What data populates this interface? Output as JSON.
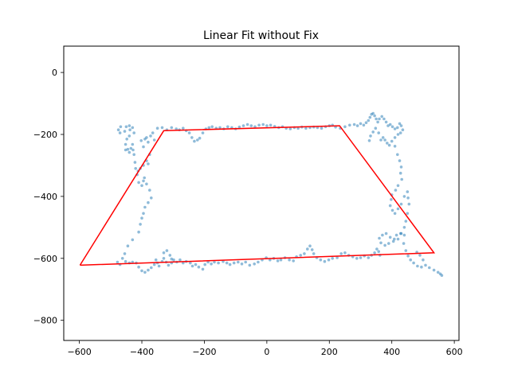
{
  "chart_data": {
    "type": "scatter",
    "title": "Linear Fit without Fix",
    "xlabel": "",
    "ylabel": "",
    "xlim": [
      -650,
      615
    ],
    "ylim": [
      -865,
      85
    ],
    "xticks": [
      -600,
      -400,
      -200,
      0,
      200,
      400,
      600
    ],
    "yticks": [
      0,
      -200,
      -400,
      -600,
      -800
    ],
    "grid": false,
    "colors": {
      "points": "#1f77b4",
      "fit_line": "#ff0000",
      "axes": "#000000"
    },
    "series": [
      {
        "kind": "points",
        "values": [
          [
            -475,
            -185
          ],
          [
            -468,
            -175
          ],
          [
            -470,
            -195
          ],
          [
            -455,
            -190
          ],
          [
            -450,
            -175
          ],
          [
            -440,
            -172
          ],
          [
            -438,
            -185
          ],
          [
            -430,
            -178
          ],
          [
            -425,
            -195
          ],
          [
            -448,
            -215
          ],
          [
            -452,
            -232
          ],
          [
            -445,
            -248
          ],
          [
            -440,
            -258
          ],
          [
            -452,
            -250
          ],
          [
            -435,
            -245
          ],
          [
            -430,
            -232
          ],
          [
            -428,
            -250
          ],
          [
            -440,
            -205
          ],
          [
            -425,
            -265
          ],
          [
            -422,
            -290
          ],
          [
            -420,
            -310
          ],
          [
            -412,
            -318
          ],
          [
            -405,
            -310
          ],
          [
            -415,
            -330
          ],
          [
            -410,
            -355
          ],
          [
            -400,
            -365
          ],
          [
            -395,
            -350
          ],
          [
            -392,
            -340
          ],
          [
            -385,
            -360
          ],
          [
            -375,
            -380
          ],
          [
            -370,
            -405
          ],
          [
            -380,
            -420
          ],
          [
            -390,
            -435
          ],
          [
            -395,
            -455
          ],
          [
            -400,
            -470
          ],
          [
            -405,
            -490
          ],
          [
            -410,
            -515
          ],
          [
            -430,
            -540
          ],
          [
            -445,
            -560
          ],
          [
            -455,
            -585
          ],
          [
            -462,
            -600
          ],
          [
            -470,
            -620
          ],
          [
            -478,
            -612
          ],
          [
            -402,
            -220
          ],
          [
            -395,
            -240
          ],
          [
            -390,
            -215
          ],
          [
            -385,
            -210
          ],
          [
            -380,
            -225
          ],
          [
            -372,
            -205
          ],
          [
            -365,
            -195
          ],
          [
            -360,
            -218
          ],
          [
            -375,
            -265
          ],
          [
            -395,
            -300
          ],
          [
            -385,
            -285
          ],
          [
            -380,
            -295
          ],
          [
            -452,
            -610
          ],
          [
            -440,
            -615
          ],
          [
            -430,
            -612
          ],
          [
            -418,
            -615
          ],
          [
            -410,
            -628
          ],
          [
            -400,
            -640
          ],
          [
            -390,
            -645
          ],
          [
            -380,
            -638
          ],
          [
            -370,
            -630
          ],
          [
            -360,
            -620
          ],
          [
            -355,
            -605
          ],
          [
            -350,
            -615
          ],
          [
            -345,
            -625
          ],
          [
            -335,
            -610
          ],
          [
            -330,
            -600
          ],
          [
            -322,
            -612
          ],
          [
            -315,
            -622
          ],
          [
            -305,
            -615
          ],
          [
            -298,
            -605
          ],
          [
            -288,
            -612
          ],
          [
            -278,
            -605
          ],
          [
            -268,
            -615
          ],
          [
            -258,
            -610
          ],
          [
            -245,
            -615
          ],
          [
            -238,
            -625
          ],
          [
            -228,
            -620
          ],
          [
            -218,
            -628
          ],
          [
            -205,
            -635
          ],
          [
            -198,
            -620
          ],
          [
            -188,
            -612
          ],
          [
            -178,
            -618
          ],
          [
            -168,
            -612
          ],
          [
            -155,
            -615
          ],
          [
            -140,
            -610
          ],
          [
            -128,
            -615
          ],
          [
            -118,
            -620
          ],
          [
            -105,
            -615
          ],
          [
            -92,
            -612
          ],
          [
            -80,
            -618
          ],
          [
            -68,
            -612
          ],
          [
            -55,
            -622
          ],
          [
            -40,
            -618
          ],
          [
            -28,
            -612
          ],
          [
            -15,
            -605
          ],
          [
            -2,
            -598
          ],
          [
            10,
            -605
          ],
          [
            22,
            -600
          ],
          [
            35,
            -608
          ],
          [
            45,
            -605
          ],
          [
            58,
            -598
          ],
          [
            72,
            -605
          ],
          [
            85,
            -608
          ],
          [
            95,
            -595
          ],
          [
            108,
            -590
          ],
          [
            120,
            -585
          ],
          [
            130,
            -570
          ],
          [
            138,
            -560
          ],
          [
            145,
            -572
          ],
          [
            150,
            -585
          ],
          [
            160,
            -598
          ],
          [
            172,
            -605
          ],
          [
            185,
            -610
          ],
          [
            198,
            -605
          ],
          [
            210,
            -600
          ],
          [
            225,
            -598
          ],
          [
            238,
            -585
          ],
          [
            250,
            -582
          ],
          [
            262,
            -590
          ],
          [
            275,
            -595
          ],
          [
            288,
            -600
          ],
          [
            300,
            -598
          ],
          [
            312,
            -592
          ],
          [
            325,
            -598
          ],
          [
            335,
            -590
          ],
          [
            345,
            -582
          ],
          [
            352,
            -570
          ],
          [
            358,
            -578
          ],
          [
            362,
            -590
          ],
          [
            -320,
            -575
          ],
          [
            -330,
            -582
          ],
          [
            -310,
            -590
          ],
          [
            -305,
            -602
          ],
          [
            -350,
            -180
          ],
          [
            -335,
            -178
          ],
          [
            -320,
            -185
          ],
          [
            -305,
            -178
          ],
          [
            -290,
            -182
          ],
          [
            -280,
            -185
          ],
          [
            -268,
            -180
          ],
          [
            -258,
            -188
          ],
          [
            -248,
            -195
          ],
          [
            -240,
            -210
          ],
          [
            -232,
            -222
          ],
          [
            -222,
            -218
          ],
          [
            -215,
            -212
          ],
          [
            -205,
            -195
          ],
          [
            -195,
            -182
          ],
          [
            -185,
            -178
          ],
          [
            -175,
            -175
          ],
          [
            -162,
            -180
          ],
          [
            -150,
            -178
          ],
          [
            -138,
            -182
          ],
          [
            -125,
            -175
          ],
          [
            -112,
            -178
          ],
          [
            -100,
            -182
          ],
          [
            -88,
            -176
          ],
          [
            -75,
            -172
          ],
          [
            -62,
            -168
          ],
          [
            -50,
            -172
          ],
          [
            -38,
            -175
          ],
          [
            -25,
            -170
          ],
          [
            -12,
            -168
          ],
          [
            0,
            -172
          ],
          [
            12,
            -170
          ],
          [
            25,
            -174
          ],
          [
            38,
            -178
          ],
          [
            50,
            -175
          ],
          [
            62,
            -180
          ],
          [
            75,
            -182
          ],
          [
            88,
            -178
          ],
          [
            100,
            -180
          ],
          [
            112,
            -176
          ],
          [
            125,
            -180
          ],
          [
            138,
            -178
          ],
          [
            150,
            -176
          ],
          [
            162,
            -178
          ],
          [
            175,
            -180
          ],
          [
            188,
            -175
          ],
          [
            200,
            -172
          ],
          [
            210,
            -170
          ],
          [
            220,
            -176
          ],
          [
            235,
            -180
          ],
          [
            250,
            -175
          ],
          [
            265,
            -170
          ],
          [
            280,
            -168
          ],
          [
            290,
            -172
          ],
          [
            300,
            -165
          ],
          [
            310,
            -170
          ],
          [
            318,
            -162
          ],
          [
            325,
            -155
          ],
          [
            330,
            -145
          ],
          [
            335,
            -135
          ],
          [
            340,
            -132
          ],
          [
            345,
            -140
          ],
          [
            350,
            -150
          ],
          [
            355,
            -160
          ],
          [
            360,
            -150
          ],
          [
            368,
            -142
          ],
          [
            375,
            -150
          ],
          [
            382,
            -160
          ],
          [
            388,
            -172
          ],
          [
            395,
            -168
          ],
          [
            402,
            -175
          ],
          [
            410,
            -182
          ],
          [
            418,
            -178
          ],
          [
            425,
            -165
          ],
          [
            430,
            -172
          ],
          [
            435,
            -185
          ],
          [
            428,
            -195
          ],
          [
            420,
            -200
          ],
          [
            410,
            -210
          ],
          [
            400,
            -222
          ],
          [
            392,
            -235
          ],
          [
            385,
            -228
          ],
          [
            378,
            -218
          ],
          [
            372,
            -210
          ],
          [
            365,
            -218
          ],
          [
            358,
            -195
          ],
          [
            348,
            -180
          ],
          [
            340,
            -192
          ],
          [
            332,
            -205
          ],
          [
            328,
            -220
          ],
          [
            410,
            -238
          ],
          [
            418,
            -265
          ],
          [
            425,
            -285
          ],
          [
            430,
            -305
          ],
          [
            428,
            -325
          ],
          [
            432,
            -345
          ],
          [
            420,
            -365
          ],
          [
            412,
            -380
          ],
          [
            400,
            -395
          ],
          [
            398,
            -410
          ],
          [
            395,
            -430
          ],
          [
            402,
            -445
          ],
          [
            410,
            -455
          ],
          [
            420,
            -440
          ],
          [
            430,
            -425
          ],
          [
            440,
            -400
          ],
          [
            450,
            -385
          ],
          [
            452,
            -405
          ],
          [
            455,
            -425
          ],
          [
            450,
            -455
          ],
          [
            445,
            -480
          ],
          [
            440,
            -500
          ],
          [
            430,
            -520
          ],
          [
            420,
            -538
          ],
          [
            405,
            -545
          ],
          [
            390,
            -552
          ],
          [
            378,
            -558
          ],
          [
            365,
            -550
          ],
          [
            360,
            -535
          ],
          [
            370,
            -525
          ],
          [
            382,
            -520
          ],
          [
            395,
            -532
          ],
          [
            408,
            -538
          ],
          [
            415,
            -525
          ],
          [
            428,
            -520
          ],
          [
            440,
            -525
          ],
          [
            438,
            -552
          ],
          [
            445,
            -575
          ],
          [
            452,
            -592
          ],
          [
            460,
            -605
          ],
          [
            470,
            -615
          ],
          [
            482,
            -625
          ],
          [
            495,
            -628
          ],
          [
            508,
            -622
          ],
          [
            520,
            -630
          ],
          [
            535,
            -638
          ],
          [
            548,
            -645
          ],
          [
            555,
            -650
          ],
          [
            560,
            -655
          ],
          [
            500,
            -605
          ],
          [
            490,
            -590
          ],
          [
            480,
            -580
          ]
        ]
      },
      {
        "kind": "fit_line",
        "values": [
          [
            -598,
            -622
          ],
          [
            -330,
            -188
          ],
          [
            233,
            -172
          ],
          [
            535,
            -582
          ],
          [
            -598,
            -622
          ]
        ]
      }
    ]
  }
}
